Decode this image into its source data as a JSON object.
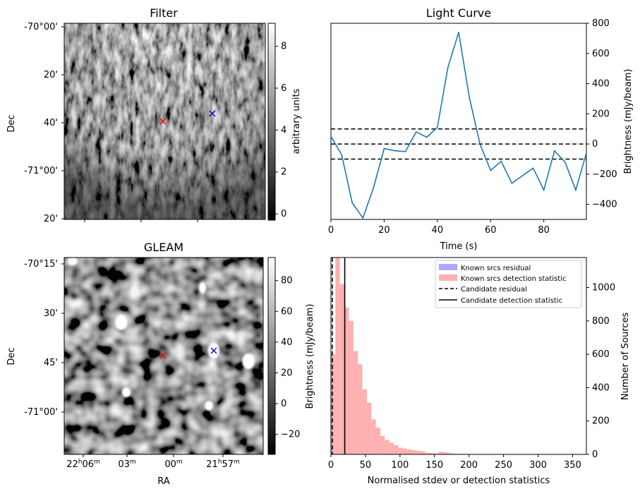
{
  "chart_data": [
    {
      "type": "image",
      "title": "Filter",
      "ylabel": "Dec",
      "y_ticks": [
        "-70°00'",
        "20'",
        "40'",
        "-71°00'",
        "20'"
      ],
      "colorbar": {
        "label": "arbitrary units",
        "ticks": [
          "0",
          "2",
          "4",
          "6",
          "8"
        ],
        "range": [
          -0.3,
          9.1
        ]
      },
      "markers": [
        {
          "name": "red-cross",
          "color": "#ff0000",
          "symbol": "x"
        },
        {
          "name": "blue-cross",
          "color": "#0000cc",
          "symbol": "x"
        }
      ]
    },
    {
      "type": "line",
      "title": "Light Curve",
      "xlabel": "Time (s)",
      "ylabel": "Brightness (mJy/beam)",
      "xlim": [
        0,
        96
      ],
      "ylim": [
        -500,
        800
      ],
      "x_ticks": [
        "0",
        "20",
        "40",
        "60",
        "80"
      ],
      "y_ticks": [
        "−400",
        "−200",
        "0",
        "200",
        "400",
        "600",
        "800"
      ],
      "series": [
        {
          "name": "light curve",
          "color": "#1f77b4",
          "x": [
            0,
            4,
            8,
            12,
            16,
            20,
            24,
            28,
            32,
            36,
            40,
            44,
            48,
            52,
            56,
            60,
            64,
            68,
            72,
            76,
            80,
            84,
            88,
            92,
            96
          ],
          "values": [
            50,
            -70,
            -390,
            -490,
            -290,
            -30,
            -45,
            -50,
            80,
            45,
            110,
            510,
            740,
            310,
            0,
            -175,
            -115,
            -260,
            -210,
            -160,
            -305,
            -45,
            -120,
            -305,
            -60
          ]
        }
      ],
      "hlines": [
        {
          "name": "upper-threshold",
          "y": 100,
          "style": "dashed"
        },
        {
          "name": "zero-level",
          "y": 0,
          "style": "dashed"
        },
        {
          "name": "lower-threshold",
          "y": -100,
          "style": "dashed"
        }
      ]
    },
    {
      "type": "image",
      "title": "GLEAM",
      "xlabel": "RA",
      "ylabel": "Dec",
      "y_ticks": [
        "-70°15'",
        "30'",
        "45'",
        "-71°00'"
      ],
      "x_ticks": [
        {
          "main": "22",
          "sup1": "h",
          "mid": "06",
          "sup2": "m"
        },
        {
          "main": "03",
          "sup1": "m",
          "mid": "",
          "sup2": ""
        },
        {
          "main": "00",
          "sup1": "m",
          "mid": "",
          "sup2": ""
        },
        {
          "main": "21",
          "sup1": "h",
          "mid": "57",
          "sup2": "m"
        }
      ],
      "colorbar": {
        "ticks": [
          "−20",
          "0",
          "20",
          "40",
          "60",
          "80"
        ],
        "range": [
          -33,
          95
        ]
      },
      "markers": [
        {
          "name": "red-cross",
          "color": "#ff0000",
          "symbol": "x"
        },
        {
          "name": "blue-cross",
          "color": "#0000cc",
          "symbol": "x"
        }
      ]
    },
    {
      "type": "histogram",
      "xlabel": "Normalised stdev or detection statistics",
      "ylabel_left": "Brightness (mJy/beam)",
      "ylabel_right": "Number of Sources",
      "xlim": [
        0,
        370
      ],
      "ylim": [
        0,
        1180
      ],
      "x_ticks": [
        "0",
        "50",
        "100",
        "150",
        "200",
        "250",
        "300",
        "350"
      ],
      "y_ticks": [
        "0",
        "200",
        "400",
        "600",
        "800",
        "1000"
      ],
      "bin_width": 6.5,
      "series": [
        {
          "name": "Known srcs residual",
          "color": "#aaaaff",
          "bin_starts": [
            0
          ],
          "counts": [
            30
          ]
        },
        {
          "name": "Known srcs detection statistic",
          "color": "#ffb0b0",
          "bin_starts": [
            0,
            6.5,
            13,
            19.5,
            26,
            32.5,
            39,
            45.5,
            52,
            58.5,
            65,
            71.5,
            78,
            84.5,
            91,
            97.5,
            104,
            110.5,
            117,
            123.5,
            130,
            136.5,
            143,
            149.5,
            156,
            162.5,
            169,
            175.5,
            182,
            188.5,
            195,
            201.5,
            208,
            214.5,
            221,
            227.5,
            234,
            240.5,
            247,
            253.5,
            260,
            266.5,
            273,
            279.5,
            286,
            292.5,
            299,
            305.5,
            312,
            318.5,
            325,
            331.5,
            338,
            344.5,
            351,
            357.5
          ],
          "counts": [
            600,
            1180,
            1020,
            880,
            800,
            620,
            540,
            390,
            310,
            210,
            160,
            110,
            85,
            70,
            55,
            40,
            35,
            30,
            25,
            22,
            18,
            10,
            7,
            5,
            15,
            12,
            8,
            4,
            3,
            3,
            2,
            2,
            2,
            2,
            1,
            1,
            2,
            1,
            1,
            1,
            1,
            1,
            1,
            1,
            0,
            0,
            0,
            0,
            0,
            0,
            0,
            0,
            0,
            0,
            0,
            0
          ]
        }
      ],
      "vlines": [
        {
          "name": "Candidate residual",
          "x": 2,
          "style": "dashed"
        },
        {
          "name": "Candidate detection statistic",
          "x": 20,
          "style": "solid"
        }
      ],
      "legend": {
        "position": "top-right",
        "entries": [
          "Known srcs residual",
          "Known srcs detection statistic",
          "Candidate residual",
          "Candidate detection statistic"
        ]
      }
    }
  ]
}
